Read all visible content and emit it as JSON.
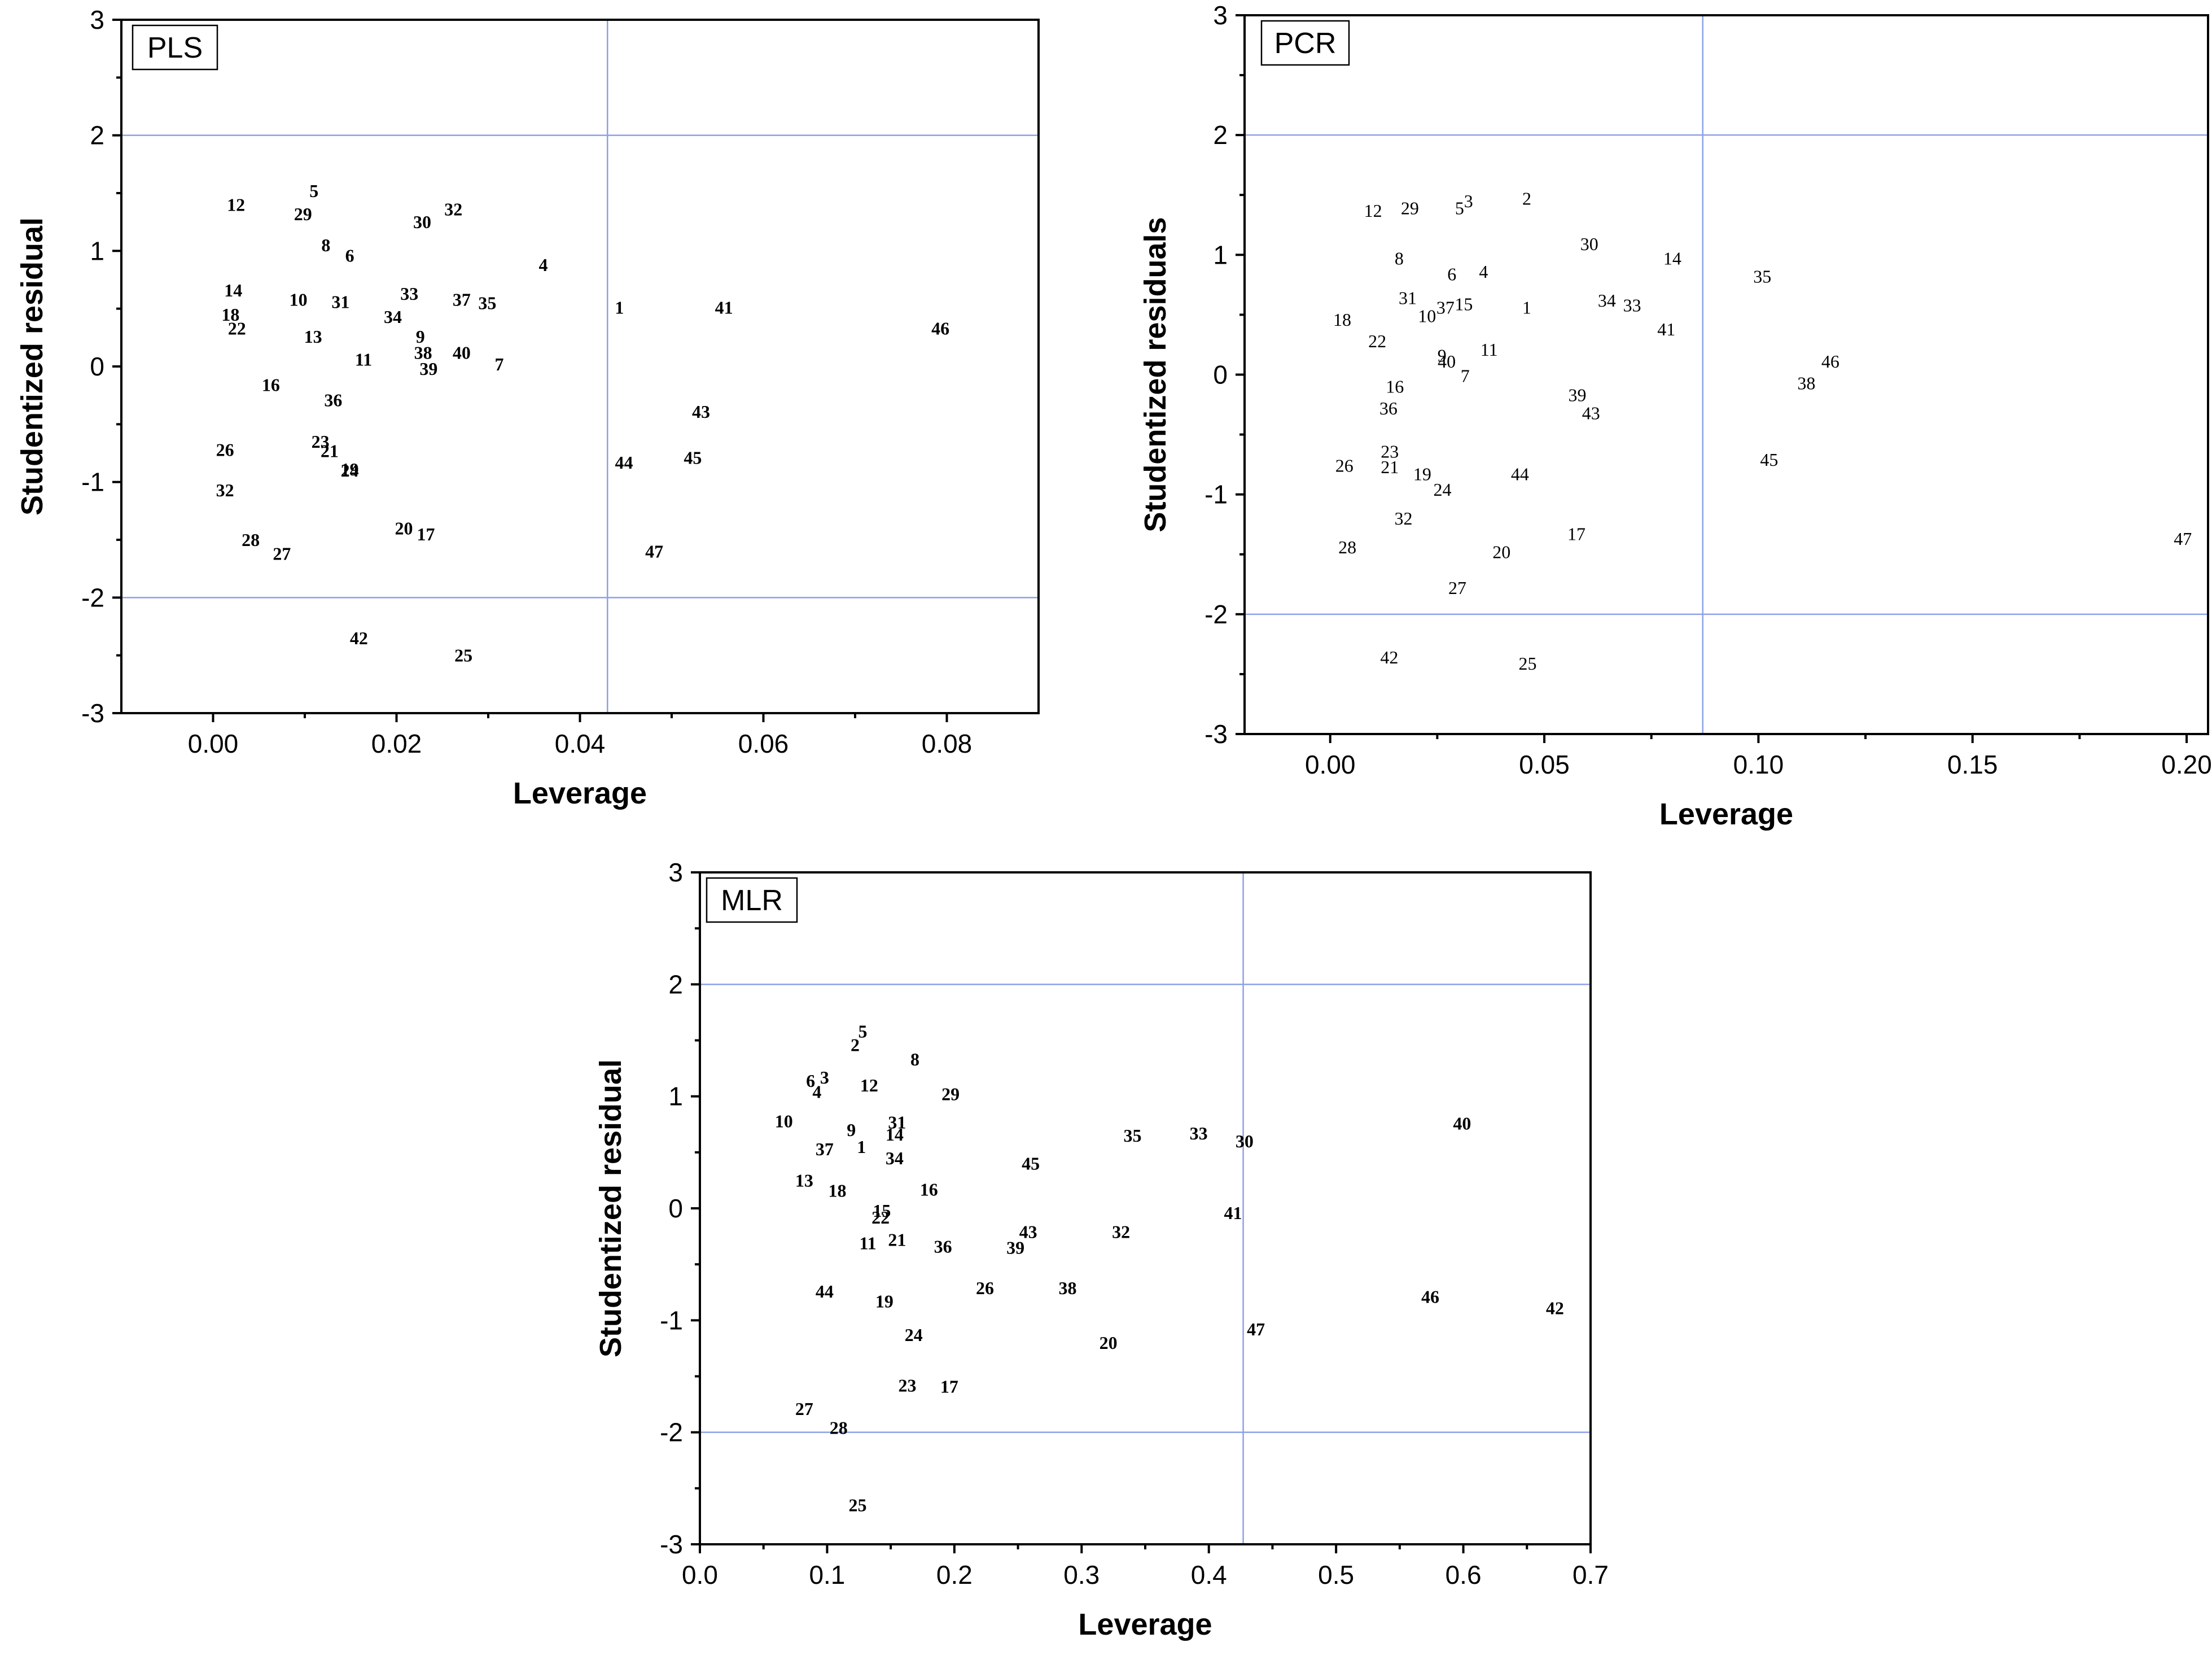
{
  "chart_data": [
    {
      "type": "scatter",
      "title": "PLS",
      "xlabel": "Leverage",
      "ylabel": "Studentized residual",
      "xlim": [
        -0.01,
        0.09
      ],
      "ylim": [
        -3,
        3
      ],
      "xticks": [
        0.0,
        0.02,
        0.04,
        0.06,
        0.08
      ],
      "xtick_labels": [
        "0.00",
        "0.02",
        "0.04",
        "0.06",
        "0.08"
      ],
      "yticks": [
        -3,
        -2,
        -1,
        0,
        1,
        2,
        3
      ],
      "ytick_labels": [
        "-3",
        "-2",
        "-1",
        "0",
        "1",
        "2",
        "3"
      ],
      "ref_x": 0.043,
      "ref_y": [
        2,
        -2
      ],
      "label_style": "bold",
      "points": [
        {
          "label": "12",
          "x": 0.0025,
          "y": 1.4
        },
        {
          "label": "5",
          "x": 0.011,
          "y": 1.52
        },
        {
          "label": "29",
          "x": 0.0098,
          "y": 1.32
        },
        {
          "label": "30",
          "x": 0.0228,
          "y": 1.25
        },
        {
          "label": "32",
          "x": 0.0262,
          "y": 1.36
        },
        {
          "label": "8",
          "x": 0.0123,
          "y": 1.05
        },
        {
          "label": "6",
          "x": 0.0149,
          "y": 0.96
        },
        {
          "label": "4",
          "x": 0.036,
          "y": 0.88
        },
        {
          "label": "14",
          "x": 0.0022,
          "y": 0.66
        },
        {
          "label": "10",
          "x": 0.0093,
          "y": 0.58
        },
        {
          "label": "31",
          "x": 0.0139,
          "y": 0.56
        },
        {
          "label": "33",
          "x": 0.0214,
          "y": 0.63
        },
        {
          "label": "37",
          "x": 0.0271,
          "y": 0.58
        },
        {
          "label": "35",
          "x": 0.0299,
          "y": 0.55
        },
        {
          "label": "1",
          "x": 0.0443,
          "y": 0.51
        },
        {
          "label": "41",
          "x": 0.0557,
          "y": 0.51
        },
        {
          "label": "46",
          "x": 0.0793,
          "y": 0.33
        },
        {
          "label": "18",
          "x": 0.0019,
          "y": 0.45
        },
        {
          "label": "34",
          "x": 0.0196,
          "y": 0.43
        },
        {
          "label": "22",
          "x": 0.0026,
          "y": 0.33
        },
        {
          "label": "13",
          "x": 0.0109,
          "y": 0.26
        },
        {
          "label": "9",
          "x": 0.0226,
          "y": 0.26
        },
        {
          "label": "38",
          "x": 0.0229,
          "y": 0.12
        },
        {
          "label": "40",
          "x": 0.0271,
          "y": 0.12
        },
        {
          "label": "11",
          "x": 0.0164,
          "y": 0.06
        },
        {
          "label": "39",
          "x": 0.0235,
          "y": -0.02
        },
        {
          "label": "7",
          "x": 0.0312,
          "y": 0.02
        },
        {
          "label": "16",
          "x": 0.0063,
          "y": -0.16
        },
        {
          "label": "36",
          "x": 0.0131,
          "y": -0.29
        },
        {
          "label": "43",
          "x": 0.0532,
          "y": -0.39
        },
        {
          "label": "26",
          "x": 0.0013,
          "y": -0.72
        },
        {
          "label": "23",
          "x": 0.0117,
          "y": -0.65
        },
        {
          "label": "21",
          "x": 0.0127,
          "y": -0.73
        },
        {
          "label": "19",
          "x": 0.0149,
          "y": -0.89
        },
        {
          "label": "24",
          "x": 0.0149,
          "y": -0.9
        },
        {
          "label": "44",
          "x": 0.0448,
          "y": -0.83
        },
        {
          "label": "45",
          "x": 0.0523,
          "y": -0.79
        },
        {
          "label": "32",
          "x": 0.0013,
          "y": -1.07
        },
        {
          "label": "28",
          "x": 0.0041,
          "y": -1.5
        },
        {
          "label": "27",
          "x": 0.0075,
          "y": -1.62
        },
        {
          "label": "20",
          "x": 0.0208,
          "y": -1.4
        },
        {
          "label": "17",
          "x": 0.0232,
          "y": -1.45
        },
        {
          "label": "47",
          "x": 0.0481,
          "y": -1.6
        },
        {
          "label": "42",
          "x": 0.0159,
          "y": -2.35
        },
        {
          "label": "25",
          "x": 0.0273,
          "y": -2.5
        }
      ]
    },
    {
      "type": "scatter",
      "title": "PCR",
      "xlabel": "Leverage",
      "ylabel": "Studentized residuals",
      "xlim": [
        -0.02,
        0.205
      ],
      "ylim": [
        -3,
        3
      ],
      "xticks": [
        0.0,
        0.05,
        0.1,
        0.15,
        0.2
      ],
      "xtick_labels": [
        "0.00",
        "0.05",
        "0.10",
        "0.15",
        "0.20"
      ],
      "yticks": [
        -3,
        -2,
        -1,
        0,
        1,
        2,
        3
      ],
      "ytick_labels": [
        "-3",
        "-2",
        "-1",
        "0",
        "1",
        "2",
        "3"
      ],
      "ref_x": 0.087,
      "ref_y": [
        2,
        -2
      ],
      "label_style": "regular",
      "points": [
        {
          "label": "12",
          "x": 0.01,
          "y": 1.37
        },
        {
          "label": "29",
          "x": 0.0186,
          "y": 1.39
        },
        {
          "label": "5",
          "x": 0.0302,
          "y": 1.39
        },
        {
          "label": "3",
          "x": 0.0323,
          "y": 1.45
        },
        {
          "label": "2",
          "x": 0.0459,
          "y": 1.47
        },
        {
          "label": "30",
          "x": 0.0605,
          "y": 1.09
        },
        {
          "label": "14",
          "x": 0.0799,
          "y": 0.97
        },
        {
          "label": "8",
          "x": 0.0161,
          "y": 0.97
        },
        {
          "label": "6",
          "x": 0.0284,
          "y": 0.84
        },
        {
          "label": "4",
          "x": 0.0358,
          "y": 0.86
        },
        {
          "label": "35",
          "x": 0.1009,
          "y": 0.82
        },
        {
          "label": "31",
          "x": 0.0181,
          "y": 0.64
        },
        {
          "label": "10",
          "x": 0.0226,
          "y": 0.49
        },
        {
          "label": "37",
          "x": 0.0269,
          "y": 0.56
        },
        {
          "label": "15",
          "x": 0.0312,
          "y": 0.59
        },
        {
          "label": "1",
          "x": 0.0459,
          "y": 0.56
        },
        {
          "label": "34",
          "x": 0.0646,
          "y": 0.62
        },
        {
          "label": "33",
          "x": 0.0705,
          "y": 0.58
        },
        {
          "label": "41",
          "x": 0.0785,
          "y": 0.38
        },
        {
          "label": "18",
          "x": 0.0028,
          "y": 0.46
        },
        {
          "label": "22",
          "x": 0.011,
          "y": 0.28
        },
        {
          "label": "9",
          "x": 0.0261,
          "y": 0.16
        },
        {
          "label": "40",
          "x": 0.0272,
          "y": 0.11
        },
        {
          "label": "11",
          "x": 0.0371,
          "y": 0.21
        },
        {
          "label": "7",
          "x": 0.0315,
          "y": -0.01
        },
        {
          "label": "46",
          "x": 0.1168,
          "y": 0.11
        },
        {
          "label": "38",
          "x": 0.1112,
          "y": -0.07
        },
        {
          "label": "16",
          "x": 0.0151,
          "y": -0.1
        },
        {
          "label": "39",
          "x": 0.0577,
          "y": -0.17
        },
        {
          "label": "36",
          "x": 0.0136,
          "y": -0.28
        },
        {
          "label": "43",
          "x": 0.0609,
          "y": -0.32
        },
        {
          "label": "45",
          "x": 0.1025,
          "y": -0.71
        },
        {
          "label": "23",
          "x": 0.0139,
          "y": -0.64
        },
        {
          "label": "26",
          "x": 0.0033,
          "y": -0.76
        },
        {
          "label": "21",
          "x": 0.0139,
          "y": -0.77
        },
        {
          "label": "19",
          "x": 0.0215,
          "y": -0.83
        },
        {
          "label": "24",
          "x": 0.0262,
          "y": -0.96
        },
        {
          "label": "44",
          "x": 0.0443,
          "y": -0.83
        },
        {
          "label": "32",
          "x": 0.0171,
          "y": -1.2
        },
        {
          "label": "17",
          "x": 0.0575,
          "y": -1.33
        },
        {
          "label": "47",
          "x": 0.1991,
          "y": -1.37
        },
        {
          "label": "28",
          "x": 0.004,
          "y": -1.44
        },
        {
          "label": "20",
          "x": 0.04,
          "y": -1.48
        },
        {
          "label": "27",
          "x": 0.0297,
          "y": -1.78
        },
        {
          "label": "42",
          "x": 0.0138,
          "y": -2.36
        },
        {
          "label": "25",
          "x": 0.0461,
          "y": -2.41
        }
      ]
    },
    {
      "type": "scatter",
      "title": "MLR",
      "xlabel": "Leverage",
      "ylabel": "Studentized residual",
      "xlim": [
        0.0,
        0.7
      ],
      "ylim": [
        -3,
        3
      ],
      "xticks": [
        0.0,
        0.1,
        0.2,
        0.3,
        0.4,
        0.5,
        0.6,
        0.7
      ],
      "xtick_labels": [
        "0.0",
        "0.1",
        "0.2",
        "0.3",
        "0.4",
        "0.5",
        "0.6",
        "0.7"
      ],
      "yticks": [
        -3,
        -2,
        -1,
        0,
        1,
        2,
        3
      ],
      "ytick_labels": [
        "-3",
        "-2",
        "-1",
        "0",
        "1",
        "2",
        "3"
      ],
      "ref_x": 0.427,
      "ref_y": [
        2,
        -2
      ],
      "label_style": "bold",
      "points": [
        {
          "label": "5",
          "x": 0.128,
          "y": 1.58
        },
        {
          "label": "2",
          "x": 0.122,
          "y": 1.46
        },
        {
          "label": "8",
          "x": 0.169,
          "y": 1.33
        },
        {
          "label": "6",
          "x": 0.087,
          "y": 1.14
        },
        {
          "label": "3",
          "x": 0.098,
          "y": 1.17
        },
        {
          "label": "4",
          "x": 0.092,
          "y": 1.04
        },
        {
          "label": "12",
          "x": 0.133,
          "y": 1.1
        },
        {
          "label": "29",
          "x": 0.197,
          "y": 1.02
        },
        {
          "label": "10",
          "x": 0.066,
          "y": 0.78
        },
        {
          "label": "31",
          "x": 0.155,
          "y": 0.77
        },
        {
          "label": "9",
          "x": 0.119,
          "y": 0.7
        },
        {
          "label": "14",
          "x": 0.153,
          "y": 0.66
        },
        {
          "label": "37",
          "x": 0.098,
          "y": 0.53
        },
        {
          "label": "1",
          "x": 0.127,
          "y": 0.55
        },
        {
          "label": "34",
          "x": 0.153,
          "y": 0.45
        },
        {
          "label": "45",
          "x": 0.26,
          "y": 0.4
        },
        {
          "label": "35",
          "x": 0.34,
          "y": 0.65
        },
        {
          "label": "33",
          "x": 0.392,
          "y": 0.67
        },
        {
          "label": "30",
          "x": 0.428,
          "y": 0.6
        },
        {
          "label": "40",
          "x": 0.599,
          "y": 0.76
        },
        {
          "label": "13",
          "x": 0.082,
          "y": 0.25
        },
        {
          "label": "18",
          "x": 0.108,
          "y": 0.16
        },
        {
          "label": "16",
          "x": 0.18,
          "y": 0.17
        },
        {
          "label": "15",
          "x": 0.143,
          "y": -0.02
        },
        {
          "label": "22",
          "x": 0.142,
          "y": -0.08
        },
        {
          "label": "41",
          "x": 0.419,
          "y": -0.04
        },
        {
          "label": "11",
          "x": 0.132,
          "y": -0.31
        },
        {
          "label": "21",
          "x": 0.155,
          "y": -0.28
        },
        {
          "label": "36",
          "x": 0.191,
          "y": -0.34
        },
        {
          "label": "43",
          "x": 0.258,
          "y": -0.21
        },
        {
          "label": "39",
          "x": 0.248,
          "y": -0.35
        },
        {
          "label": "32",
          "x": 0.331,
          "y": -0.21
        },
        {
          "label": "44",
          "x": 0.098,
          "y": -0.74
        },
        {
          "label": "19",
          "x": 0.145,
          "y": -0.83
        },
        {
          "label": "26",
          "x": 0.224,
          "y": -0.71
        },
        {
          "label": "38",
          "x": 0.289,
          "y": -0.71
        },
        {
          "label": "46",
          "x": 0.574,
          "y": -0.79
        },
        {
          "label": "42",
          "x": 0.672,
          "y": -0.89
        },
        {
          "label": "47",
          "x": 0.437,
          "y": -1.08
        },
        {
          "label": "24",
          "x": 0.168,
          "y": -1.13
        },
        {
          "label": "20",
          "x": 0.321,
          "y": -1.2
        },
        {
          "label": "23",
          "x": 0.163,
          "y": -1.58
        },
        {
          "label": "17",
          "x": 0.196,
          "y": -1.59
        },
        {
          "label": "27",
          "x": 0.082,
          "y": -1.79
        },
        {
          "label": "28",
          "x": 0.109,
          "y": -1.96
        },
        {
          "label": "25",
          "x": 0.124,
          "y": -2.65
        }
      ]
    }
  ]
}
